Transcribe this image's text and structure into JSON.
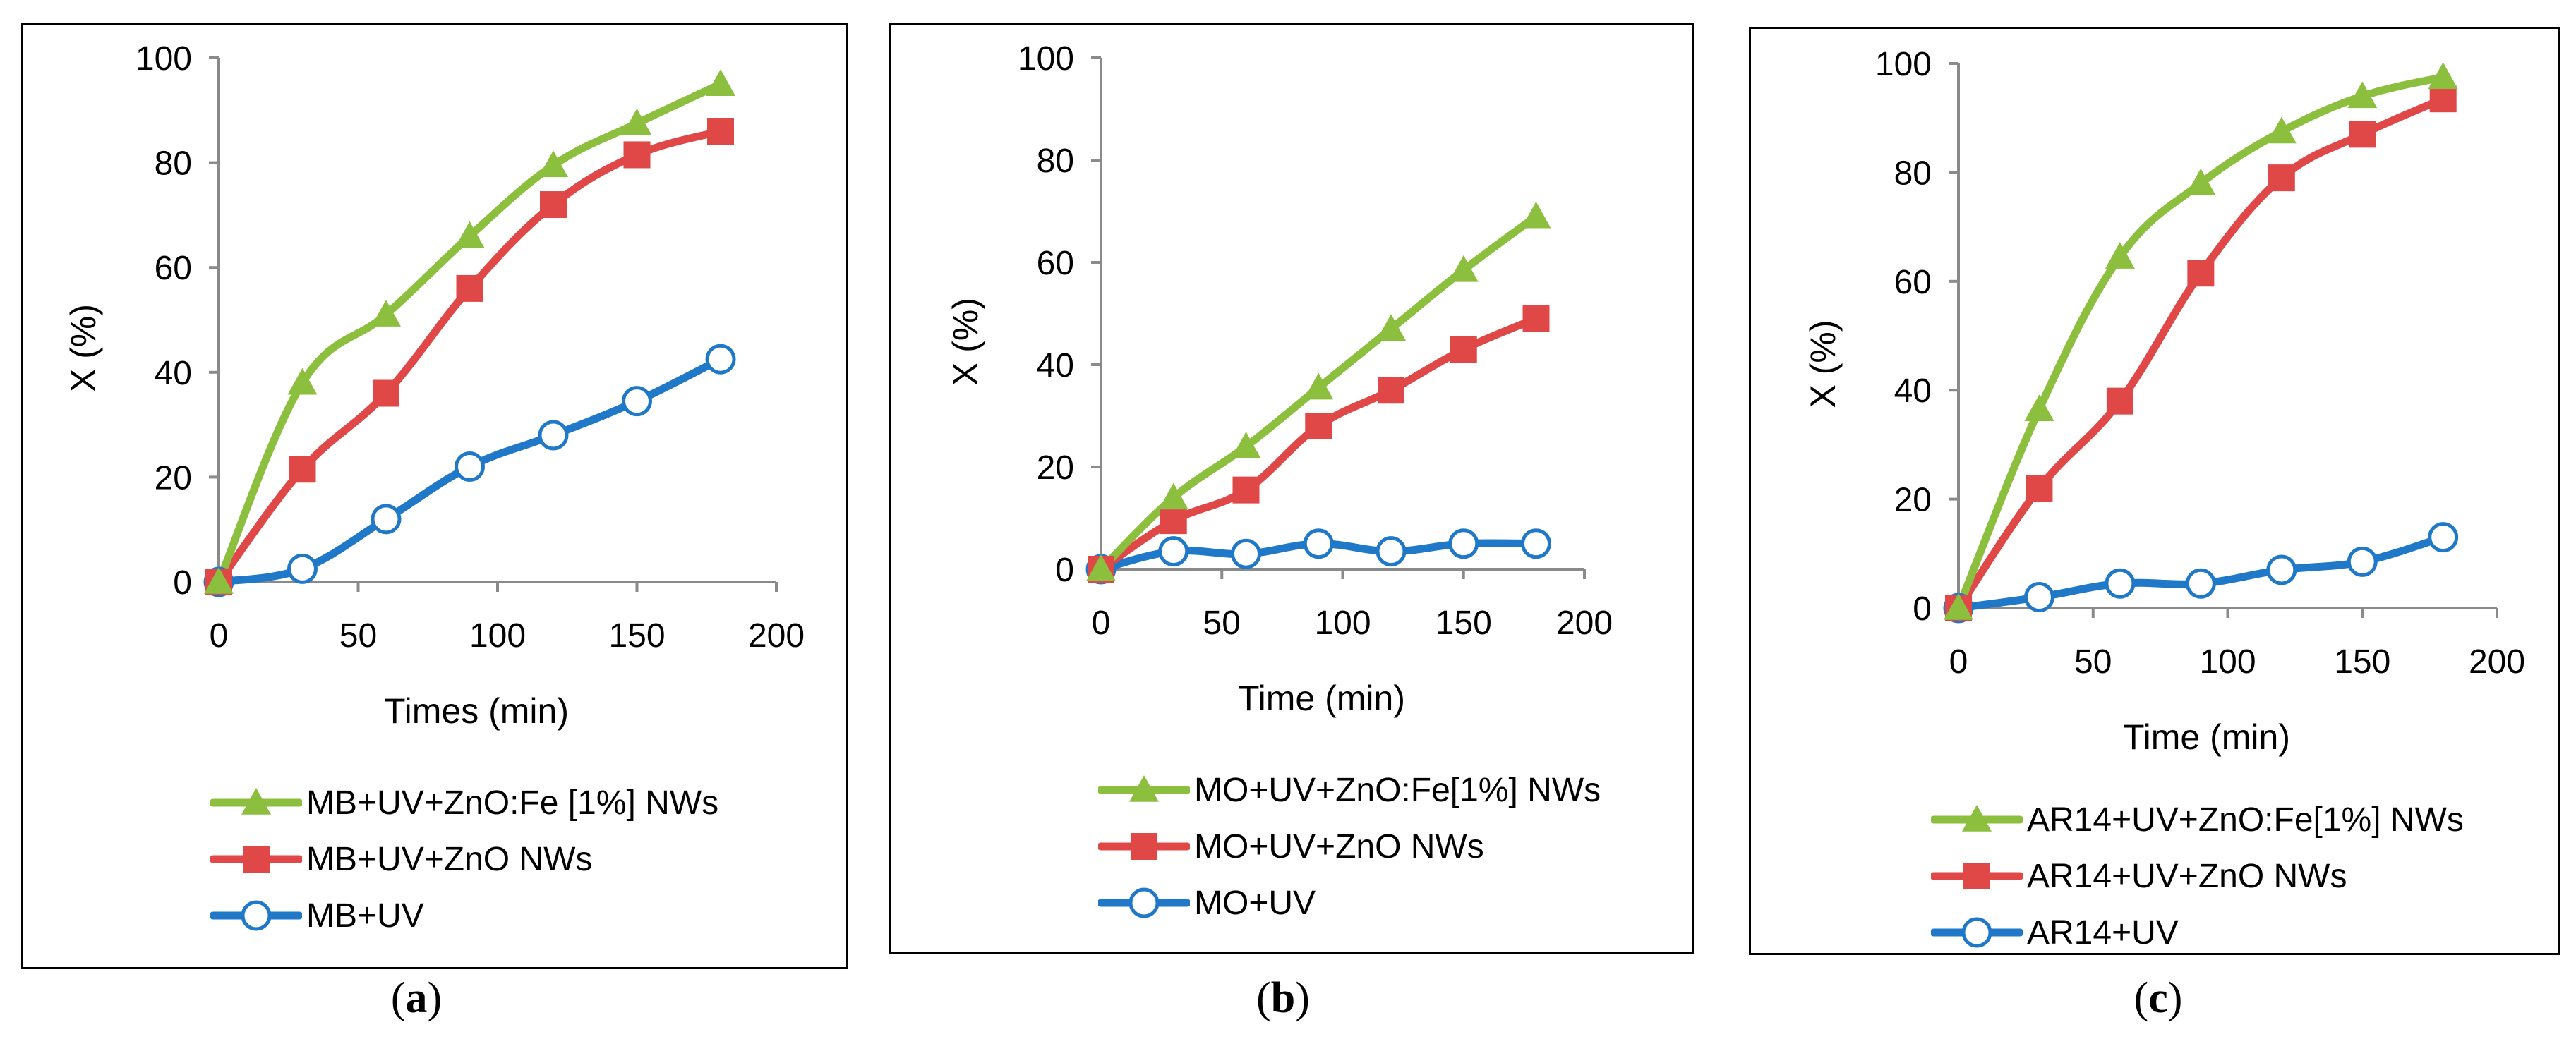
{
  "colors": {
    "green": "#8dbf3f",
    "red": "#e04848",
    "blue": "#1f78c8"
  },
  "chart_data": [
    {
      "type": "line",
      "xlabel": "Times (min)",
      "ylabel": "X (%)",
      "xlim": [
        0,
        200
      ],
      "ylim": [
        0,
        100
      ],
      "xticks": [
        0,
        50,
        100,
        150,
        200
      ],
      "yticks": [
        0,
        20,
        40,
        60,
        80,
        100
      ],
      "x": [
        0,
        30,
        60,
        90,
        120,
        150,
        180
      ],
      "series": [
        {
          "name": "MB+UV+ZnO:Fe [1%] NWs",
          "marker": "triangle",
          "color": "#8dbf3f",
          "values": [
            0,
            38,
            51,
            66,
            79.5,
            87.5,
            95
          ]
        },
        {
          "name": "MB+UV+ZnO NWs",
          "marker": "square",
          "color": "#e04848",
          "values": [
            0,
            21.5,
            36,
            56,
            72,
            81.5,
            86
          ]
        },
        {
          "name": "MB+UV",
          "marker": "circle",
          "color": "#1f78c8",
          "values": [
            0,
            2.5,
            12,
            22,
            28,
            34.5,
            42.5
          ]
        }
      ],
      "caption": "a"
    },
    {
      "type": "line",
      "xlabel": "Time (min)",
      "ylabel": "X (%)",
      "xlim": [
        0,
        200
      ],
      "ylim": [
        0,
        100
      ],
      "xticks": [
        0,
        50,
        100,
        150,
        200
      ],
      "yticks": [
        0,
        20,
        40,
        60,
        80,
        100
      ],
      "x": [
        0,
        30,
        60,
        90,
        120,
        150,
        180
      ],
      "series": [
        {
          "name": "MO+UV+ZnO:Fe[1%] NWs",
          "marker": "triangle",
          "color": "#8dbf3f",
          "values": [
            0,
            14,
            24,
            35.5,
            47,
            58.5,
            69
          ]
        },
        {
          "name": "MO+UV+ZnO NWs",
          "marker": "square",
          "color": "#e04848",
          "values": [
            0,
            9.5,
            15.5,
            28,
            35,
            43,
            49
          ]
        },
        {
          "name": "MO+UV",
          "marker": "circle",
          "color": "#1f78c8",
          "values": [
            0,
            3.5,
            3,
            5,
            3.5,
            5,
            5
          ]
        }
      ],
      "caption": "b"
    },
    {
      "type": "line",
      "xlabel": "Time (min)",
      "ylabel": "X (%)",
      "xlim": [
        0,
        200
      ],
      "ylim": [
        0,
        100
      ],
      "xticks": [
        0,
        50,
        100,
        150,
        200
      ],
      "yticks": [
        0,
        20,
        40,
        60,
        80,
        100
      ],
      "x": [
        0,
        30,
        60,
        90,
        120,
        150,
        180
      ],
      "series": [
        {
          "name": "AR14+UV+ZnO:Fe[1%] NWs",
          "marker": "triangle",
          "color": "#8dbf3f",
          "values": [
            0,
            36.5,
            64.5,
            78,
            87.5,
            94,
            97.5
          ]
        },
        {
          "name": "AR14+UV+ZnO NWs",
          "marker": "square",
          "color": "#e04848",
          "values": [
            0,
            22,
            38,
            61.5,
            79,
            87,
            93.5
          ]
        },
        {
          "name": "AR14+UV",
          "marker": "circle",
          "color": "#1f78c8",
          "values": [
            0,
            2,
            4.5,
            4.5,
            7,
            8.5,
            13
          ]
        }
      ],
      "caption": "c"
    }
  ]
}
